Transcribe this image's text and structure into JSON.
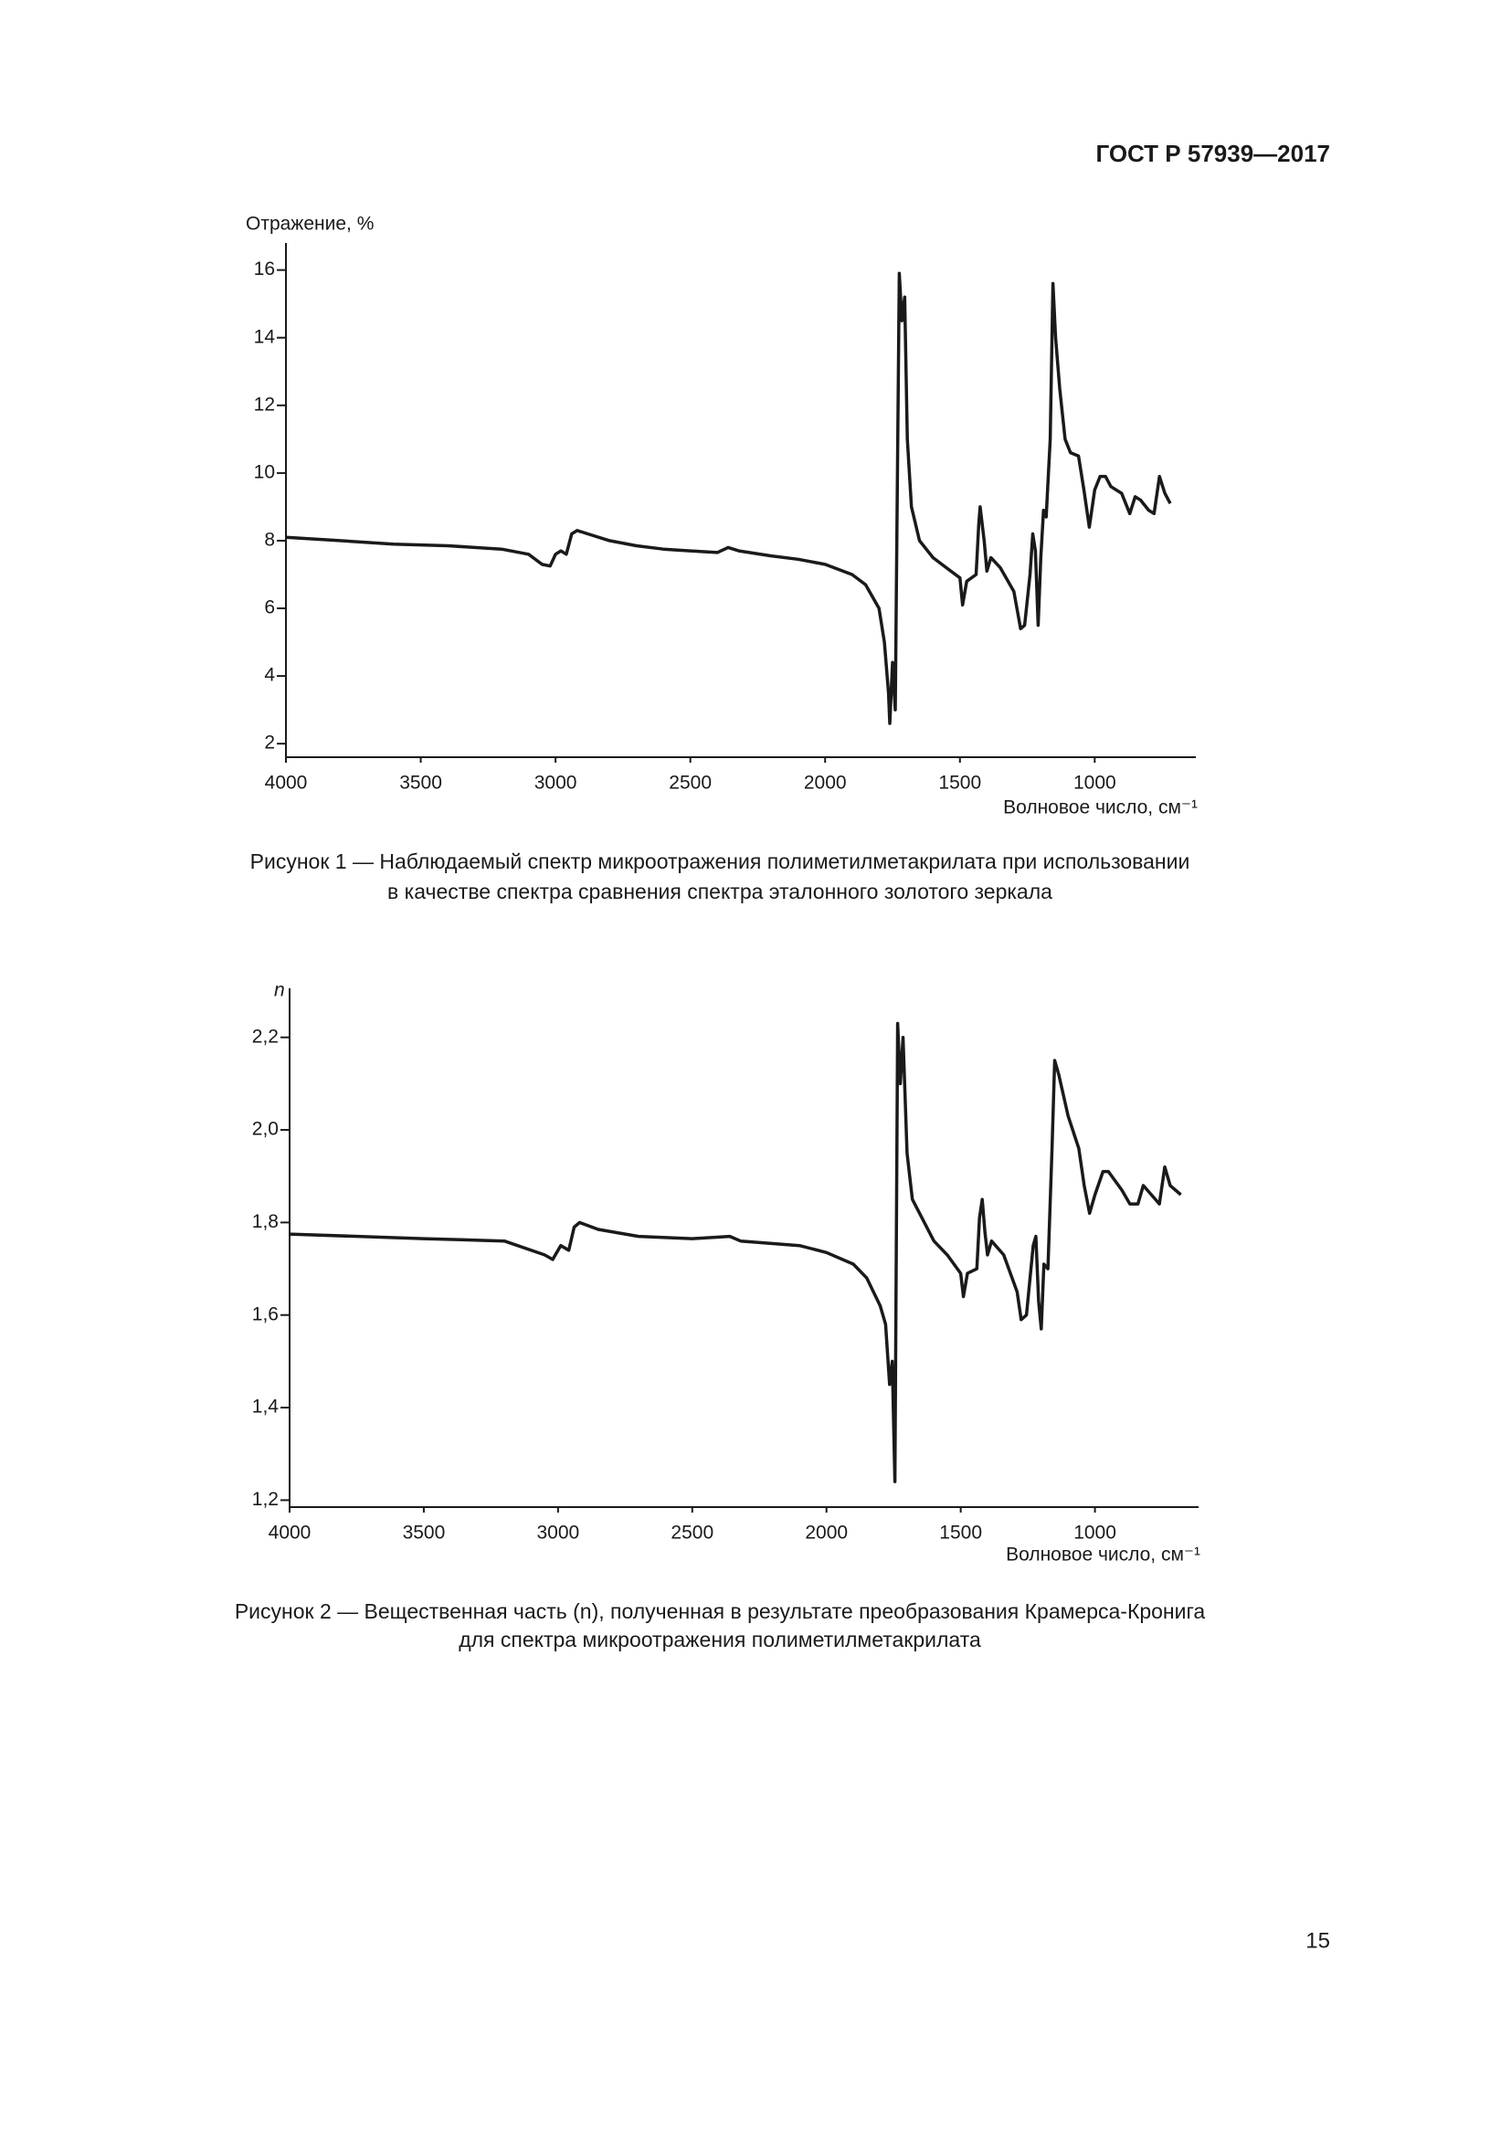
{
  "header": {
    "standard": "ГОСТ Р 57939—2017"
  },
  "chart_data": [
    {
      "type": "line",
      "y_label": "Отражение, %",
      "x_label": "Волновое число, см⁻¹",
      "color": "#1a1a1a",
      "x": [
        4000,
        3800,
        3600,
        3400,
        3200,
        3100,
        3050,
        3020,
        3000,
        2980,
        2960,
        2940,
        2920,
        2880,
        2800,
        2700,
        2600,
        2500,
        2400,
        2360,
        2320,
        2200,
        2100,
        2000,
        1900,
        1850,
        1800,
        1780,
        1765,
        1760,
        1750,
        1740,
        1730,
        1725,
        1715,
        1705,
        1695,
        1680,
        1650,
        1600,
        1550,
        1500,
        1490,
        1475,
        1440,
        1430,
        1425,
        1410,
        1400,
        1385,
        1350,
        1300,
        1275,
        1260,
        1240,
        1230,
        1220,
        1210,
        1200,
        1190,
        1180,
        1165,
        1155,
        1145,
        1130,
        1110,
        1090,
        1060,
        1040,
        1020,
        1000,
        980,
        960,
        940,
        900,
        870,
        850,
        830,
        800,
        780,
        760,
        740,
        720
      ],
      "values": [
        8.1,
        8.0,
        7.9,
        7.85,
        7.75,
        7.6,
        7.3,
        7.25,
        7.6,
        7.7,
        7.6,
        8.2,
        8.3,
        8.2,
        8.0,
        7.85,
        7.75,
        7.7,
        7.65,
        7.8,
        7.7,
        7.55,
        7.45,
        7.3,
        7.0,
        6.7,
        6.0,
        5.0,
        3.5,
        2.6,
        4.4,
        3.0,
        11.5,
        15.9,
        14.5,
        15.2,
        11.0,
        9.0,
        8.0,
        7.5,
        7.2,
        6.9,
        6.1,
        6.8,
        7.0,
        8.5,
        9.0,
        8.0,
        7.1,
        7.5,
        7.2,
        6.5,
        5.4,
        5.5,
        7.0,
        8.2,
        7.7,
        5.5,
        7.5,
        8.9,
        8.7,
        11.0,
        15.6,
        14.0,
        12.5,
        11.0,
        10.6,
        10.5,
        9.5,
        8.4,
        9.5,
        9.9,
        9.9,
        9.6,
        9.4,
        8.8,
        9.3,
        9.2,
        8.9,
        8.8,
        9.9,
        9.4,
        9.1
      ],
      "xlim": [
        4000,
        625
      ],
      "ylim": [
        1.6,
        16.8
      ],
      "xticks": [
        4000,
        3500,
        3000,
        2500,
        2000,
        1500,
        1000
      ],
      "yticks": [
        2,
        4,
        6,
        8,
        10,
        12,
        14,
        16
      ],
      "caption": [
        "Рисунок 1 — Наблюдаемый спектр микроотражения полиметилметакрилата при использовании",
        "в качестве спектра сравнения спектра эталонного золотого зеркала"
      ]
    },
    {
      "type": "line",
      "y_label": "n",
      "x_label": "Волновое число, см⁻¹",
      "color": "#1a1a1a",
      "x": [
        4000,
        3500,
        3200,
        3050,
        3020,
        2990,
        2960,
        2940,
        2920,
        2850,
        2700,
        2500,
        2360,
        2320,
        2100,
        2000,
        1900,
        1850,
        1800,
        1780,
        1765,
        1755,
        1745,
        1735,
        1725,
        1715,
        1700,
        1680,
        1600,
        1550,
        1500,
        1490,
        1475,
        1440,
        1430,
        1420,
        1410,
        1400,
        1385,
        1340,
        1290,
        1275,
        1255,
        1230,
        1220,
        1210,
        1200,
        1190,
        1175,
        1160,
        1150,
        1135,
        1100,
        1060,
        1040,
        1020,
        1000,
        970,
        950,
        900,
        870,
        840,
        820,
        790,
        760,
        740,
        720,
        680
      ],
      "values": [
        1.775,
        1.765,
        1.76,
        1.73,
        1.72,
        1.75,
        1.74,
        1.79,
        1.8,
        1.785,
        1.77,
        1.765,
        1.77,
        1.76,
        1.75,
        1.735,
        1.71,
        1.68,
        1.62,
        1.58,
        1.45,
        1.5,
        1.24,
        2.23,
        2.1,
        2.2,
        1.95,
        1.85,
        1.76,
        1.73,
        1.69,
        1.64,
        1.69,
        1.7,
        1.81,
        1.85,
        1.78,
        1.73,
        1.76,
        1.73,
        1.65,
        1.59,
        1.6,
        1.75,
        1.77,
        1.63,
        1.57,
        1.71,
        1.7,
        1.96,
        2.15,
        2.12,
        2.03,
        1.96,
        1.88,
        1.82,
        1.86,
        1.91,
        1.91,
        1.87,
        1.84,
        1.84,
        1.88,
        1.86,
        1.84,
        1.92,
        1.88,
        1.86
      ],
      "xlim": [
        4000,
        614
      ],
      "ylim": [
        1.185,
        2.306
      ],
      "xticks": [
        4000,
        3500,
        3000,
        2500,
        2000,
        1500,
        1000
      ],
      "yticks": [
        {
          "value": 1.2,
          "label": "1,2"
        },
        {
          "value": 1.4,
          "label": "1,4"
        },
        {
          "value": 1.6,
          "label": "1,6"
        },
        {
          "value": 1.8,
          "label": "1,8"
        },
        {
          "value": 2.0,
          "label": "2,0"
        },
        {
          "value": 2.2,
          "label": "2,2"
        }
      ],
      "caption": [
        "Рисунок 2 — Вещественная часть (n), полученная в результате преобразования Крамерса-Кронига",
        "для спектра микроотражения полиметилметакрилата"
      ]
    }
  ],
  "page_number": "15"
}
